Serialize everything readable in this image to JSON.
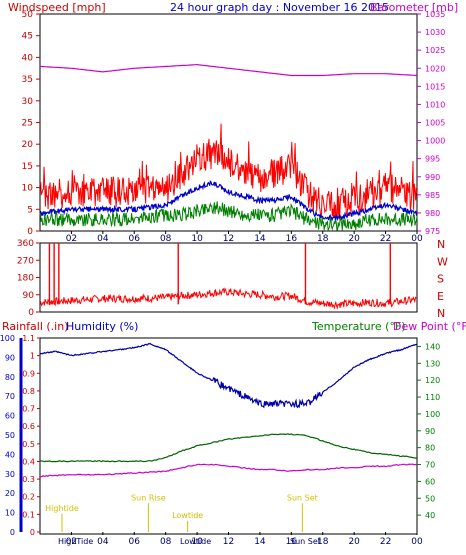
{
  "chart_data": [
    {
      "type": "line",
      "title": "24 hour graph day : November 16 2015",
      "left_axis_label": "Windspeed [mph]",
      "right_axis_label": "Barometer [mb]",
      "x_ticks": [
        "02",
        "04",
        "06",
        "08",
        "10",
        "12",
        "14",
        "16",
        "18",
        "20",
        "22",
        "00"
      ],
      "ylim_left": [
        0,
        50
      ],
      "yticks_left": [
        "0",
        "5",
        "10",
        "15",
        "20",
        "25",
        "30",
        "35",
        "40",
        "45",
        "50"
      ],
      "ylim_right": [
        975,
        1035
      ],
      "yticks_right": [
        "975",
        "980",
        "985",
        "990",
        "995",
        "1000",
        "1005",
        "1010",
        "1015",
        "1020",
        "1025",
        "1030",
        "1035"
      ],
      "grid": false,
      "colors": {
        "gust": "#ff0000",
        "average": "#0000cc",
        "speed": "#008000",
        "barometer": "#cc00cc",
        "left_axis": "#cc0000",
        "right_axis": "#cc00cc"
      },
      "series": [
        {
          "key": "gust",
          "hours": [
            0,
            2,
            4,
            6,
            8,
            9,
            10,
            11,
            12,
            13,
            14,
            15,
            16,
            17,
            18,
            19,
            20,
            21,
            22,
            23,
            24
          ],
          "values": [
            8,
            9,
            9,
            9,
            10,
            13,
            16,
            18,
            16,
            14,
            12,
            13,
            15,
            9,
            6,
            6,
            7,
            8,
            10,
            9,
            8
          ]
        },
        {
          "key": "average",
          "hours": [
            0,
            2,
            4,
            6,
            8,
            9,
            10,
            11,
            12,
            13,
            14,
            15,
            16,
            17,
            18,
            19,
            20,
            21,
            22,
            23,
            24
          ],
          "values": [
            4,
            5,
            5,
            5,
            6,
            8,
            10,
            11,
            9,
            8,
            7,
            7,
            8,
            5,
            3,
            3,
            4,
            5,
            6,
            5,
            4
          ]
        },
        {
          "key": "speed",
          "hours": [
            0,
            2,
            4,
            6,
            8,
            9,
            10,
            11,
            12,
            13,
            14,
            15,
            16,
            17,
            18,
            19,
            20,
            21,
            22,
            23,
            24
          ],
          "values": [
            2,
            2,
            2,
            2,
            3,
            3,
            4,
            5,
            4,
            3,
            3,
            3,
            4,
            2,
            1,
            1,
            1,
            2,
            2,
            2,
            2
          ]
        },
        {
          "key": "barometer",
          "hours": [
            0,
            2,
            4,
            6,
            8,
            10,
            12,
            14,
            16,
            18,
            20,
            22,
            24
          ],
          "values": [
            1020.5,
            1020.0,
            1019.0,
            1020.0,
            1020.5,
            1021.0,
            1020.0,
            1019.0,
            1018.0,
            1018.0,
            1018.5,
            1018.5,
            1018.0
          ]
        }
      ]
    },
    {
      "type": "scatter",
      "x_ticks": [
        "02",
        "04",
        "06",
        "08",
        "10",
        "12",
        "14",
        "16",
        "18",
        "20",
        "22",
        "00"
      ],
      "ylim": [
        0,
        360
      ],
      "yticks": [
        "0",
        "90",
        "180",
        "270",
        "360"
      ],
      "compass_labels": [
        "N",
        "W",
        "S",
        "E",
        "N"
      ],
      "colors": {
        "direction": "#ff0000",
        "compass": "#cc0000"
      },
      "spike_hours": [
        0.6,
        0.9,
        1.2,
        8.8,
        16.9,
        22.3
      ],
      "baseline": {
        "hours": [
          0,
          2,
          4,
          6,
          8,
          9,
          10,
          11,
          12,
          13,
          14,
          15,
          16,
          17,
          18,
          19,
          20,
          21,
          22,
          23,
          24
        ],
        "values": [
          50,
          60,
          70,
          70,
          75,
          85,
          90,
          100,
          105,
          95,
          90,
          80,
          85,
          55,
          45,
          40,
          45,
          50,
          45,
          55,
          65
        ]
      }
    },
    {
      "type": "line",
      "labels": {
        "rainfall": "Rainfall (.in)",
        "humidity": "Humidity (%)",
        "temperature": "Temperature (°F)",
        "dewpoint": "Dew Point (°F)"
      },
      "x_ticks": [
        "02",
        "04",
        "06",
        "08",
        "10",
        "12",
        "14",
        "16",
        "18",
        "20",
        "22",
        "00"
      ],
      "ylim_humidity": [
        0,
        100
      ],
      "yticks_humidity": [
        "0",
        "10",
        "20",
        "30",
        "40",
        "50",
        "60",
        "70",
        "80",
        "90",
        "100"
      ],
      "ylim_rain": [
        0,
        1.1
      ],
      "yticks_rain": [
        "0",
        "0.1",
        "0.2",
        "0.3",
        "0.4",
        "0.5",
        "0.6",
        "0.7",
        "0.8",
        "0.9",
        "1",
        "1.1"
      ],
      "ylim_temp": [
        30,
        145
      ],
      "yticks_temp": [
        "40",
        "50",
        "60",
        "70",
        "80",
        "90",
        "100",
        "110",
        "120",
        "130",
        "140"
      ],
      "colors": {
        "humidity": "#0000aa",
        "temperature": "#006400",
        "dewpoint": "#cc00cc",
        "rain": "#0000cc",
        "tide": "#d4c000",
        "left_axis": "#cc0000",
        "right_axis": "#008000"
      },
      "series": [
        {
          "key": "humidity",
          "hours": [
            0,
            1,
            2,
            3,
            4,
            5,
            6,
            7,
            8,
            9,
            10,
            11,
            12,
            13,
            14,
            15,
            16,
            17,
            18,
            19,
            20,
            21,
            22,
            23,
            24
          ],
          "values": [
            92,
            93,
            91,
            92,
            93,
            94,
            95,
            97,
            94,
            88,
            82,
            78,
            74,
            70,
            66,
            66,
            66,
            66,
            72,
            78,
            85,
            89,
            92,
            94,
            97
          ]
        },
        {
          "key": "temperature",
          "hours": [
            0,
            2,
            4,
            6,
            7,
            8,
            9,
            10,
            11,
            12,
            13,
            14,
            15,
            16,
            17,
            18,
            19,
            20,
            21,
            22,
            23,
            24
          ],
          "values": [
            72,
            72,
            72,
            72,
            72,
            74,
            78,
            81,
            83,
            85,
            86,
            87,
            88,
            88,
            87,
            84,
            81,
            79,
            77,
            76,
            75,
            74
          ]
        },
        {
          "key": "dewpoint",
          "hours": [
            0,
            2,
            4,
            6,
            8,
            9,
            10,
            11,
            12,
            13,
            14,
            15,
            16,
            17,
            18,
            19,
            20,
            21,
            22,
            23,
            24
          ],
          "values": [
            63,
            64,
            64,
            65,
            66,
            68,
            70,
            70,
            69,
            68,
            67,
            67,
            66,
            67,
            67,
            68,
            68,
            69,
            69,
            70,
            70
          ]
        }
      ],
      "events": [
        {
          "label": "Hightide",
          "hour": 1.4,
          "level": 0.12
        },
        {
          "label": "Sun Rise",
          "hour": 6.9,
          "level": 0.18
        },
        {
          "label": "Lowtide",
          "hour": 9.4,
          "level": 0.08
        },
        {
          "label": "Sun Set",
          "hour": 16.7,
          "level": 0.18
        }
      ],
      "bottom_labels": [
        "HighTide",
        "Lowtide",
        "Sun Set"
      ]
    }
  ]
}
